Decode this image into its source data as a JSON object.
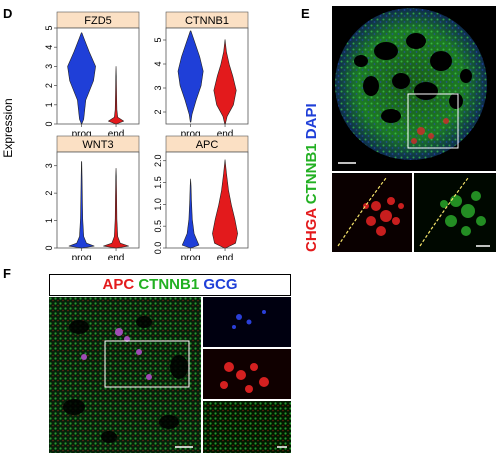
{
  "panels": {
    "d": {
      "letter": "D"
    },
    "e": {
      "letter": "E",
      "stain": [
        "CHGA",
        "CTNNB1",
        "DAPI"
      ]
    },
    "f": {
      "letter": "F",
      "stain": [
        "APC",
        "CTNNB1",
        "GCG"
      ]
    }
  },
  "colors": {
    "red": "#e31a1c",
    "green": "#22b022",
    "blue": "#1f3fd8",
    "strip": "#fbe0c4"
  },
  "chart_data": {
    "type": "violin",
    "ylabel": "Expression",
    "categories": [
      "prog",
      "end"
    ],
    "series_colors": [
      "#1f3fd8",
      "#e31a1c"
    ],
    "facets": [
      {
        "title": "FZD5",
        "ylim": [
          0,
          5
        ],
        "yticks": [
          "0",
          "1",
          "2",
          "3",
          "4",
          "5"
        ]
      },
      {
        "title": "CTNNB1",
        "ylim": [
          1.5,
          5.5
        ],
        "yticks": [
          "2",
          "3",
          "4",
          "5"
        ]
      },
      {
        "title": "WNT3",
        "ylim": [
          0,
          3.5
        ],
        "yticks": [
          "0",
          "1",
          "2",
          "3"
        ]
      },
      {
        "title": "APC",
        "ylim": [
          0,
          2.2
        ],
        "yticks": [
          "0.0",
          "0.5",
          "1.0",
          "1.5",
          "2.0"
        ]
      }
    ]
  }
}
